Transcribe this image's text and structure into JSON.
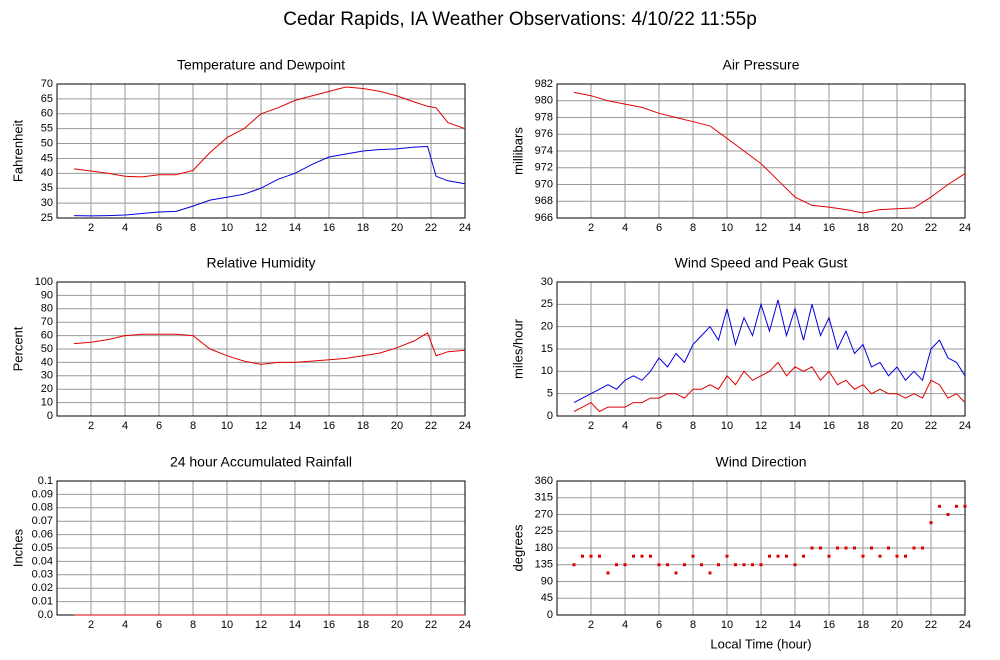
{
  "title": "Cedar Rapids, IA Weather Observations: 4/10/22 11:55p",
  "chart_data": [
    {
      "type": "line",
      "title": "Temperature and Dewpoint",
      "ylabel": "Fahrenheit",
      "xlim": [
        0,
        24
      ],
      "ylim": [
        25,
        70
      ],
      "xticks": [
        2,
        4,
        6,
        8,
        10,
        12,
        14,
        16,
        18,
        20,
        22,
        24
      ],
      "yticks": [
        25,
        30,
        35,
        40,
        45,
        50,
        55,
        60,
        65,
        70
      ],
      "grid": true,
      "x": [
        1,
        2,
        3,
        4,
        5,
        6,
        7,
        8,
        9,
        10,
        11,
        12,
        13,
        14,
        15,
        16,
        17,
        18,
        19,
        20,
        21,
        21.8,
        22.3,
        23,
        24
      ],
      "series": [
        {
          "color": "#e00000",
          "values": [
            41.5,
            40.8,
            40,
            39,
            38.8,
            39.5,
            39.5,
            41,
            47,
            52,
            55,
            60,
            62,
            64.5,
            66,
            67.5,
            69,
            68.5,
            67.5,
            66,
            64,
            62.5,
            62,
            57,
            55
          ]
        },
        {
          "color": "#0000e0",
          "values": [
            25.8,
            25.7,
            25.8,
            26,
            26.5,
            27,
            27.2,
            29,
            31,
            32,
            33,
            35,
            38,
            40,
            43,
            45.5,
            46.5,
            47.5,
            48,
            48.2,
            48.8,
            49,
            39,
            37.5,
            36.5
          ]
        }
      ]
    },
    {
      "type": "line",
      "title": "Air Pressure",
      "ylabel": "millibars",
      "xlim": [
        0,
        24
      ],
      "ylim": [
        966,
        982
      ],
      "xticks": [
        2,
        4,
        6,
        8,
        10,
        12,
        14,
        16,
        18,
        20,
        22,
        24
      ],
      "yticks": [
        966,
        968,
        970,
        972,
        974,
        976,
        978,
        980,
        982
      ],
      "grid": true,
      "x": [
        1,
        2,
        3,
        4,
        5,
        6,
        7,
        8,
        9,
        10,
        11,
        12,
        13,
        14,
        15,
        16,
        17,
        18,
        19,
        20,
        21,
        22,
        23,
        24
      ],
      "series": [
        {
          "color": "#e00000",
          "values": [
            981,
            980.6,
            980,
            979.6,
            979.2,
            978.5,
            978,
            977.5,
            977,
            975.5,
            974,
            972.5,
            970.5,
            968.5,
            967.5,
            967.3,
            967,
            966.6,
            967,
            967.1,
            967.2,
            968.5,
            970,
            971.3
          ]
        }
      ]
    },
    {
      "type": "line",
      "title": "Relative Humidity",
      "ylabel": "Percent",
      "xlim": [
        0,
        24
      ],
      "ylim": [
        0,
        100
      ],
      "xticks": [
        2,
        4,
        6,
        8,
        10,
        12,
        14,
        16,
        18,
        20,
        22,
        24
      ],
      "yticks": [
        0,
        10,
        20,
        30,
        40,
        50,
        60,
        70,
        80,
        90,
        100
      ],
      "grid": true,
      "x": [
        1,
        2,
        3,
        4,
        5,
        6,
        7,
        8,
        9,
        10,
        11,
        12,
        13,
        14,
        15,
        16,
        17,
        18,
        19,
        20,
        21,
        21.8,
        22.3,
        23,
        24
      ],
      "series": [
        {
          "color": "#e00000",
          "values": [
            54,
            55,
            57,
            60,
            61,
            61,
            61,
            60,
            50,
            45,
            41,
            38.5,
            40,
            40,
            41,
            42,
            43,
            45,
            47,
            51,
            56,
            62,
            45,
            48,
            49
          ]
        }
      ]
    },
    {
      "type": "line",
      "title": "Wind Speed and Peak Gust",
      "ylabel": "miles/hour",
      "xlim": [
        0,
        24
      ],
      "ylim": [
        0,
        30
      ],
      "xticks": [
        2,
        4,
        6,
        8,
        10,
        12,
        14,
        16,
        18,
        20,
        22,
        24
      ],
      "yticks": [
        0,
        5,
        10,
        15,
        20,
        25,
        30
      ],
      "grid": true,
      "x": [
        1,
        1.5,
        2,
        2.5,
        3,
        3.5,
        4,
        4.5,
        5,
        5.5,
        6,
        6.5,
        7,
        7.5,
        8,
        8.5,
        9,
        9.5,
        10,
        10.5,
        11,
        11.5,
        12,
        12.5,
        13,
        13.5,
        14,
        14.5,
        15,
        15.5,
        16,
        16.5,
        17,
        17.5,
        18,
        18.5,
        19,
        19.5,
        20,
        20.5,
        21,
        21.5,
        22,
        22.5,
        23,
        23.5,
        24
      ],
      "series": [
        {
          "color": "#0000e0",
          "values": [
            3,
            4,
            5,
            6,
            7,
            6,
            8,
            9,
            8,
            10,
            13,
            11,
            14,
            12,
            16,
            18,
            20,
            17,
            24,
            16,
            22,
            18,
            25,
            19,
            26,
            18,
            24,
            17,
            25,
            18,
            22,
            15,
            19,
            14,
            16,
            11,
            12,
            9,
            11,
            8,
            10,
            8,
            15,
            17,
            13,
            12,
            9
          ]
        },
        {
          "color": "#e00000",
          "values": [
            1,
            2,
            3,
            1,
            2,
            2,
            2,
            3,
            3,
            4,
            4,
            5,
            5,
            4,
            6,
            6,
            7,
            6,
            9,
            7,
            10,
            8,
            9,
            10,
            12,
            9,
            11,
            10,
            11,
            8,
            10,
            7,
            8,
            6,
            7,
            5,
            6,
            5,
            5,
            4,
            5,
            4,
            8,
            7,
            4,
            5,
            3
          ]
        }
      ]
    },
    {
      "type": "line",
      "title": "24 hour Accumulated Rainfall",
      "ylabel": "Inches",
      "xlim": [
        0,
        24
      ],
      "ylim": [
        0,
        0.1
      ],
      "xticks": [
        2,
        4,
        6,
        8,
        10,
        12,
        14,
        16,
        18,
        20,
        22,
        24
      ],
      "yticks": [
        {
          "value": 0,
          "label": "0.0"
        },
        0.01,
        0.02,
        0.03,
        0.04,
        0.05,
        0.06,
        0.07,
        0.08,
        0.09,
        0.1
      ],
      "grid": true,
      "x": [
        1,
        24
      ],
      "series": [
        {
          "color": "#e00000",
          "values": [
            0,
            0
          ]
        }
      ]
    },
    {
      "type": "scatter",
      "title": "Wind Direction",
      "ylabel": "degrees",
      "xlabel": "Local Time (hour)",
      "xlim": [
        0,
        24
      ],
      "ylim": [
        0,
        360
      ],
      "xticks": [
        2,
        4,
        6,
        8,
        10,
        12,
        14,
        16,
        18,
        20,
        22,
        24
      ],
      "yticks": [
        0,
        45,
        90,
        135,
        180,
        225,
        270,
        315,
        360
      ],
      "grid": true,
      "x": [
        1,
        1.5,
        2,
        2.5,
        3,
        3.5,
        4,
        4.5,
        5,
        5.5,
        6,
        6.5,
        7,
        7.5,
        8,
        8.5,
        9,
        9.5,
        10,
        10.5,
        11,
        11.5,
        12,
        12.5,
        13,
        13.5,
        14,
        14.5,
        15,
        15.5,
        16,
        16.5,
        17,
        17.5,
        18,
        18.5,
        19,
        19.5,
        20,
        20.5,
        21,
        21.5,
        22,
        22.5,
        23,
        23.5,
        24
      ],
      "series": [
        {
          "color": "#e00000",
          "values": [
            135,
            158,
            158,
            158,
            113,
            135,
            135,
            158,
            158,
            158,
            135,
            135,
            113,
            135,
            158,
            135,
            113,
            135,
            158,
            135,
            135,
            135,
            135,
            158,
            158,
            158,
            135,
            158,
            180,
            180,
            158,
            180,
            180,
            180,
            158,
            180,
            158,
            180,
            158,
            158,
            180,
            180,
            248,
            292,
            270,
            292,
            292
          ]
        }
      ]
    }
  ]
}
